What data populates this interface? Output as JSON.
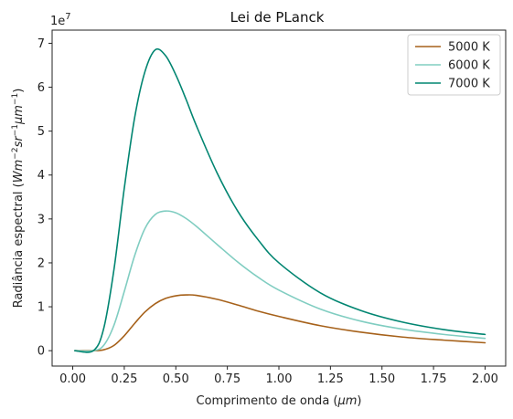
{
  "chart_data": {
    "type": "line",
    "title": "Lei de PLanck",
    "xlabel_prefix": "Comprimento de onda (",
    "xlabel_unit": "μm",
    "xlabel_suffix": ")",
    "ylabel_prefix": "Radiância espectral (",
    "ylabel_suffix": ")",
    "y_multiplier_base": "1e",
    "y_multiplier_exp": "7",
    "xlim": [
      -0.1,
      2.1
    ],
    "ylim": [
      -0.35,
      7.3
    ],
    "y_scale_label": "1e7",
    "xticks": [
      0.0,
      0.25,
      0.5,
      0.75,
      1.0,
      1.25,
      1.5,
      1.75,
      2.0
    ],
    "xtick_labels": [
      "0.00",
      "0.25",
      "0.50",
      "0.75",
      "1.00",
      "1.25",
      "1.50",
      "1.75",
      "2.00"
    ],
    "yticks": [
      0,
      1,
      2,
      3,
      4,
      5,
      6,
      7
    ],
    "ytick_labels": [
      "0",
      "1",
      "2",
      "3",
      "4",
      "5",
      "6",
      "7"
    ],
    "grid": false,
    "legend_position": "top-right",
    "x": [
      0.01,
      0.1,
      0.15,
      0.2,
      0.25,
      0.3,
      0.35,
      0.4,
      0.45,
      0.5,
      0.55,
      0.6,
      0.7,
      0.8,
      0.9,
      1.0,
      1.2,
      1.4,
      1.6,
      1.8,
      2.0
    ],
    "series": [
      {
        "name": "5000 K",
        "color": "#a6611a",
        "values": [
          0.0,
          0.0,
          0.02,
          0.12,
          0.34,
          0.62,
          0.88,
          1.07,
          1.19,
          1.25,
          1.27,
          1.26,
          1.17,
          1.04,
          0.9,
          0.78,
          0.57,
          0.42,
          0.31,
          0.24,
          0.18
        ]
      },
      {
        "name": "6000 K",
        "color": "#80cdc1",
        "values": [
          0.0,
          0.0,
          0.12,
          0.58,
          1.35,
          2.16,
          2.78,
          3.1,
          3.18,
          3.14,
          3.01,
          2.83,
          2.42,
          2.02,
          1.67,
          1.38,
          0.95,
          0.67,
          0.49,
          0.37,
          0.28
        ]
      },
      {
        "name": "7000 K",
        "color": "#018571",
        "values": [
          0.0,
          0.0,
          0.5,
          1.85,
          3.7,
          5.3,
          6.35,
          6.85,
          6.72,
          6.28,
          5.72,
          5.12,
          4.05,
          3.18,
          2.52,
          2.0,
          1.32,
          0.91,
          0.65,
          0.48,
          0.37
        ]
      }
    ]
  }
}
